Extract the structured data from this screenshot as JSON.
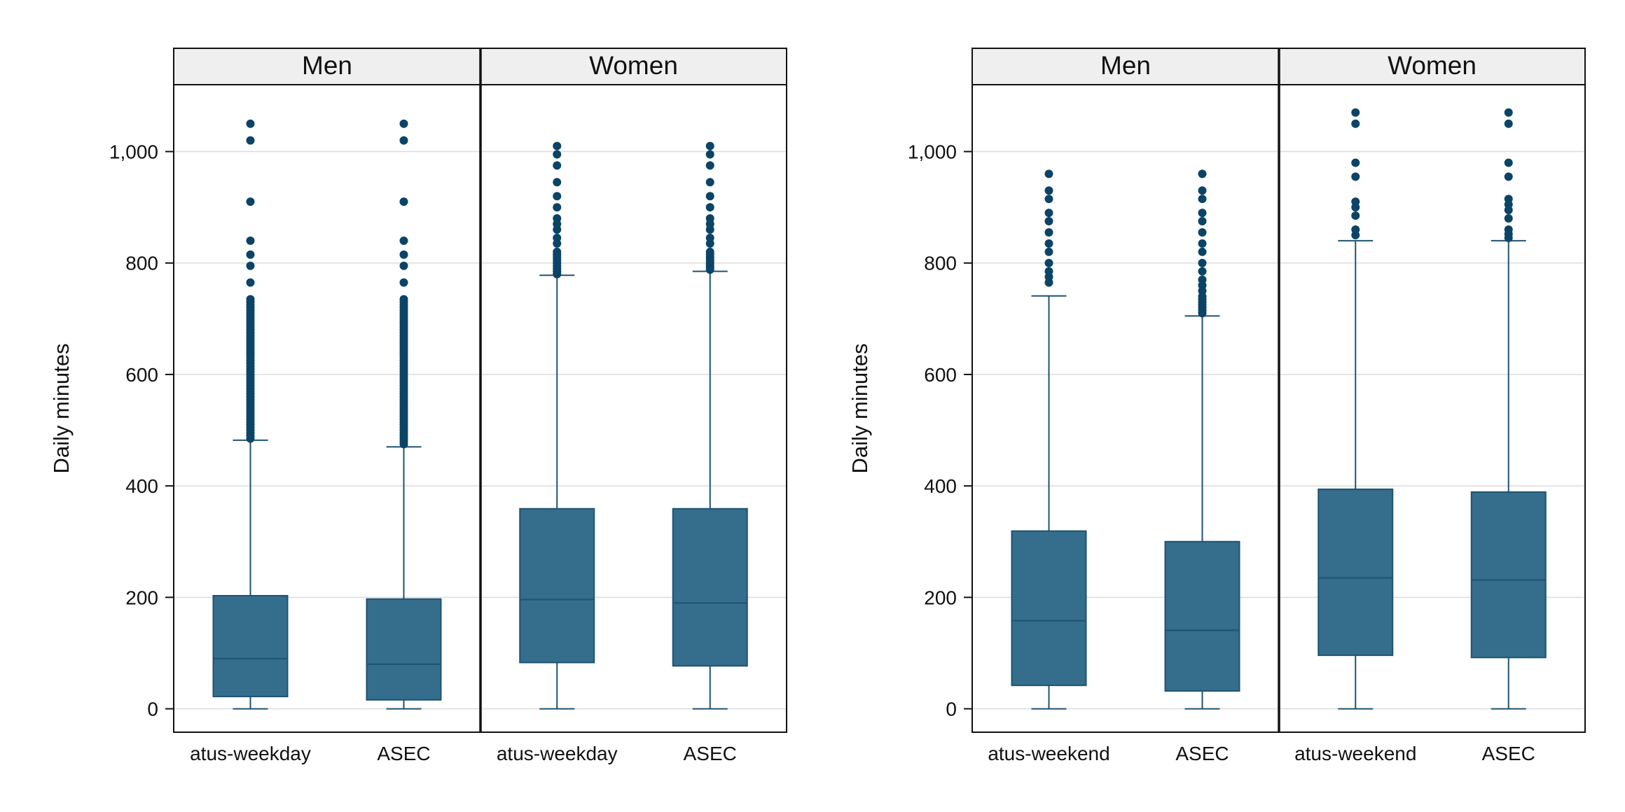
{
  "colors": {
    "box_fill": "#356e8c",
    "box_edge": "#1f5272",
    "outlier": "#0b4466",
    "grid": "#dcdcdc",
    "strip_bg": "#efefef",
    "frame": "#111111"
  },
  "chart_data": [
    {
      "type": "boxplot",
      "title": "",
      "ylabel": "Daily minutes",
      "ylim": [
        -42,
        1120
      ],
      "yticks": [
        0,
        200,
        400,
        600,
        800,
        1000
      ],
      "ytick_labels": [
        "0",
        "200",
        "400",
        "600",
        "800",
        "1,000"
      ],
      "grid": true,
      "panels": [
        {
          "label": "Men",
          "categories": [
            "atus-weekday",
            "ASEC"
          ],
          "boxes": [
            {
              "category": "atus-weekday",
              "min": 0,
              "q1": 22,
              "median": 90,
              "q3": 203,
              "max": 482,
              "outliers": [
                485,
                490,
                495,
                500,
                505,
                510,
                515,
                520,
                525,
                530,
                535,
                540,
                545,
                550,
                555,
                560,
                565,
                570,
                575,
                580,
                585,
                590,
                595,
                600,
                605,
                610,
                615,
                620,
                625,
                630,
                635,
                640,
                645,
                650,
                655,
                660,
                665,
                670,
                675,
                680,
                685,
                690,
                695,
                700,
                705,
                710,
                715,
                720,
                725,
                730,
                735,
                765,
                795,
                815,
                840,
                910,
                1020,
                1050
              ]
            },
            {
              "category": "ASEC",
              "min": 0,
              "q1": 16,
              "median": 80,
              "q3": 197,
              "max": 470,
              "outliers": [
                475,
                480,
                485,
                490,
                495,
                500,
                505,
                510,
                515,
                520,
                525,
                530,
                535,
                540,
                545,
                550,
                555,
                560,
                565,
                570,
                575,
                580,
                585,
                590,
                595,
                600,
                605,
                610,
                615,
                620,
                625,
                630,
                635,
                640,
                645,
                650,
                655,
                660,
                665,
                670,
                675,
                680,
                685,
                690,
                695,
                700,
                705,
                710,
                715,
                720,
                725,
                730,
                735,
                765,
                795,
                815,
                840,
                910,
                1020,
                1050
              ]
            }
          ]
        },
        {
          "label": "Women",
          "categories": [
            "atus-weekday",
            "ASEC"
          ],
          "boxes": [
            {
              "category": "atus-weekday",
              "min": 0,
              "q1": 83,
              "median": 196,
              "q3": 359,
              "max": 778,
              "outliers": [
                780,
                785,
                790,
                795,
                800,
                805,
                810,
                815,
                820,
                835,
                845,
                860,
                870,
                880,
                900,
                920,
                945,
                975,
                995,
                1010
              ]
            },
            {
              "category": "ASEC",
              "min": 0,
              "q1": 77,
              "median": 190,
              "q3": 359,
              "max": 785,
              "outliers": [
                788,
                792,
                796,
                800,
                805,
                810,
                815,
                820,
                835,
                845,
                860,
                870,
                880,
                900,
                920,
                945,
                975,
                995,
                1010
              ]
            }
          ]
        }
      ]
    },
    {
      "type": "boxplot",
      "title": "",
      "ylabel": "Daily minutes",
      "ylim": [
        -42,
        1120
      ],
      "yticks": [
        0,
        200,
        400,
        600,
        800,
        1000
      ],
      "ytick_labels": [
        "0",
        "200",
        "400",
        "600",
        "800",
        "1,000"
      ],
      "grid": true,
      "panels": [
        {
          "label": "Men",
          "categories": [
            "atus-weekend",
            "ASEC"
          ],
          "boxes": [
            {
              "category": "atus-weekend",
              "min": 0,
              "q1": 42,
              "median": 158,
              "q3": 319,
              "max": 741,
              "outliers": [
                765,
                775,
                785,
                800,
                820,
                835,
                855,
                875,
                890,
                915,
                930,
                960
              ]
            },
            {
              "category": "ASEC",
              "min": 0,
              "q1": 32,
              "median": 141,
              "q3": 300,
              "max": 705,
              "outliers": [
                710,
                715,
                720,
                725,
                730,
                735,
                740,
                750,
                760,
                770,
                785,
                800,
                820,
                835,
                855,
                875,
                890,
                915,
                930,
                960
              ]
            }
          ]
        },
        {
          "label": "Women",
          "categories": [
            "atus-weekend",
            "ASEC"
          ],
          "boxes": [
            {
              "category": "atus-weekend",
              "min": 0,
              "q1": 96,
              "median": 235,
              "q3": 394,
              "max": 840,
              "outliers": [
                850,
                860,
                885,
                900,
                910,
                955,
                980,
                1050,
                1070
              ]
            },
            {
              "category": "ASEC",
              "min": 0,
              "q1": 92,
              "median": 231,
              "q3": 389,
              "max": 840,
              "outliers": [
                845,
                852,
                860,
                880,
                895,
                905,
                915,
                955,
                980,
                1050,
                1070
              ]
            }
          ]
        }
      ]
    }
  ]
}
